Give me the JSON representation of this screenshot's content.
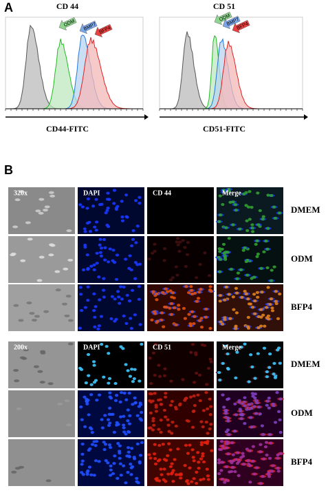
{
  "panel_a": {
    "label": "A",
    "plots": [
      {
        "title": "CD 44",
        "x_label": "CD44-FITC",
        "arrows": [
          "ODM",
          "BMP7",
          "BFP4"
        ]
      },
      {
        "title": "CD 51",
        "x_label": "CD51-FITC",
        "arrows": [
          "ODM",
          "BMP7",
          "BFP4"
        ]
      }
    ]
  },
  "panel_b": {
    "label": "B",
    "groups": [
      {
        "headers": [
          "320x",
          "DAPI",
          "CD 44",
          "Merge"
        ],
        "rows": [
          "DMEM",
          "ODM",
          "BFP4"
        ]
      },
      {
        "headers": [
          "200x",
          "DAPI",
          "CD 51",
          "Merge"
        ],
        "rows": [
          "DMEM",
          "ODM",
          "BFP4"
        ]
      }
    ]
  }
}
